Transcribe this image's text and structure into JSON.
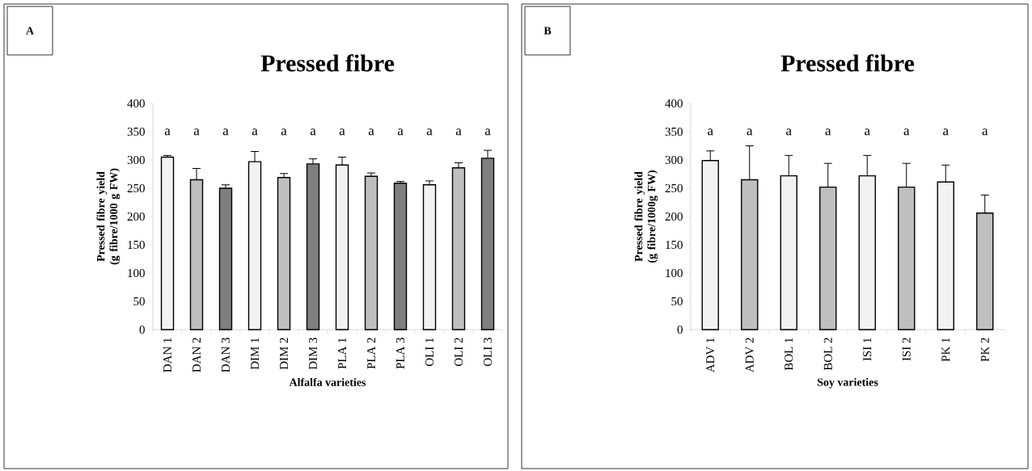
{
  "chart_data": [
    {
      "type": "bar",
      "title": "Pressed fibre",
      "xlabel": "Alfalfa varieties",
      "ylabel": "Pressed fibre yield (g fibre/1000 g FW)",
      "categories": [
        "DAN 1",
        "DAN 2",
        "DAN 3",
        "DIM 1",
        "DIM 2",
        "DIM 3",
        "PLA 1",
        "PLA 2",
        "PLA 3",
        "OLI 1",
        "OLI 2",
        "OLI 3"
      ],
      "values": [
        305,
        265,
        250,
        297,
        269,
        293,
        291,
        271,
        259,
        256,
        286,
        303
      ],
      "errors": [
        [
          305,
          308
        ],
        [
          265,
          285
        ],
        [
          250,
          256
        ],
        [
          297,
          315
        ],
        [
          269,
          276
        ],
        [
          293,
          302
        ],
        [
          291,
          305
        ],
        [
          271,
          277
        ],
        [
          259,
          262
        ],
        [
          256,
          263
        ],
        [
          286,
          295
        ],
        [
          303,
          317
        ]
      ],
      "colors": [
        "#f2f2f2",
        "#bfbfbf",
        "#7f7f7f",
        "#f2f2f2",
        "#bfbfbf",
        "#7f7f7f",
        "#f2f2f2",
        "#bfbfbf",
        "#7f7f7f",
        "#f2f2f2",
        "#bfbfbf",
        "#7f7f7f"
      ],
      "ylim": [
        0,
        400
      ],
      "yticks": [
        0,
        50,
        100,
        150,
        200,
        250,
        300,
        350,
        400
      ],
      "grid": false,
      "annotations": [
        "A",
        "a",
        "a",
        "a",
        "a",
        "a",
        "a",
        "a",
        "a",
        "a",
        "a",
        "a",
        "a"
      ]
    },
    {
      "type": "bar",
      "title": "Pressed fibre",
      "xlabel": "Soy varieties",
      "ylabel": "Pressed fibre yield (g fibre/1000g FW)",
      "categories": [
        "ADV 1",
        "ADV 2",
        "BOL 1",
        "BOL 2",
        "ISI 1",
        "ISI 2",
        "PK 1",
        "PK 2"
      ],
      "values": [
        299,
        265,
        272,
        252,
        272,
        252,
        261,
        206
      ],
      "errors": [
        [
          299,
          316
        ],
        [
          265,
          325
        ],
        [
          272,
          308
        ],
        [
          252,
          294
        ],
        [
          272,
          308
        ],
        [
          252,
          294
        ],
        [
          261,
          291
        ],
        [
          206,
          238
        ]
      ],
      "colors": [
        "#f2f2f2",
        "#bfbfbf",
        "#f2f2f2",
        "#bfbfbf",
        "#f2f2f2",
        "#bfbfbf",
        "#f2f2f2",
        "#bfbfbf"
      ],
      "ylim": [
        0,
        400
      ],
      "yticks": [
        0,
        50,
        100,
        150,
        200,
        250,
        300,
        350,
        400
      ],
      "grid": false,
      "annotations": [
        "B",
        "a",
        "a",
        "a",
        "a",
        "a",
        "a",
        "a",
        "a"
      ]
    }
  ]
}
